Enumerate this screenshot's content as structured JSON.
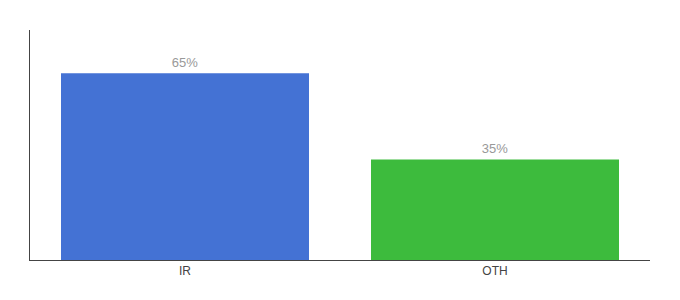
{
  "chart_data": {
    "type": "bar",
    "categories": [
      "IR",
      "OTH"
    ],
    "values": [
      65,
      35
    ],
    "value_labels": [
      "65%",
      "35%"
    ],
    "data_labels": true,
    "colors": [
      "#4472d4",
      "#3dbb3d"
    ],
    "ylim": [
      0,
      80
    ],
    "tick_labels": "x",
    "grid": false
  }
}
